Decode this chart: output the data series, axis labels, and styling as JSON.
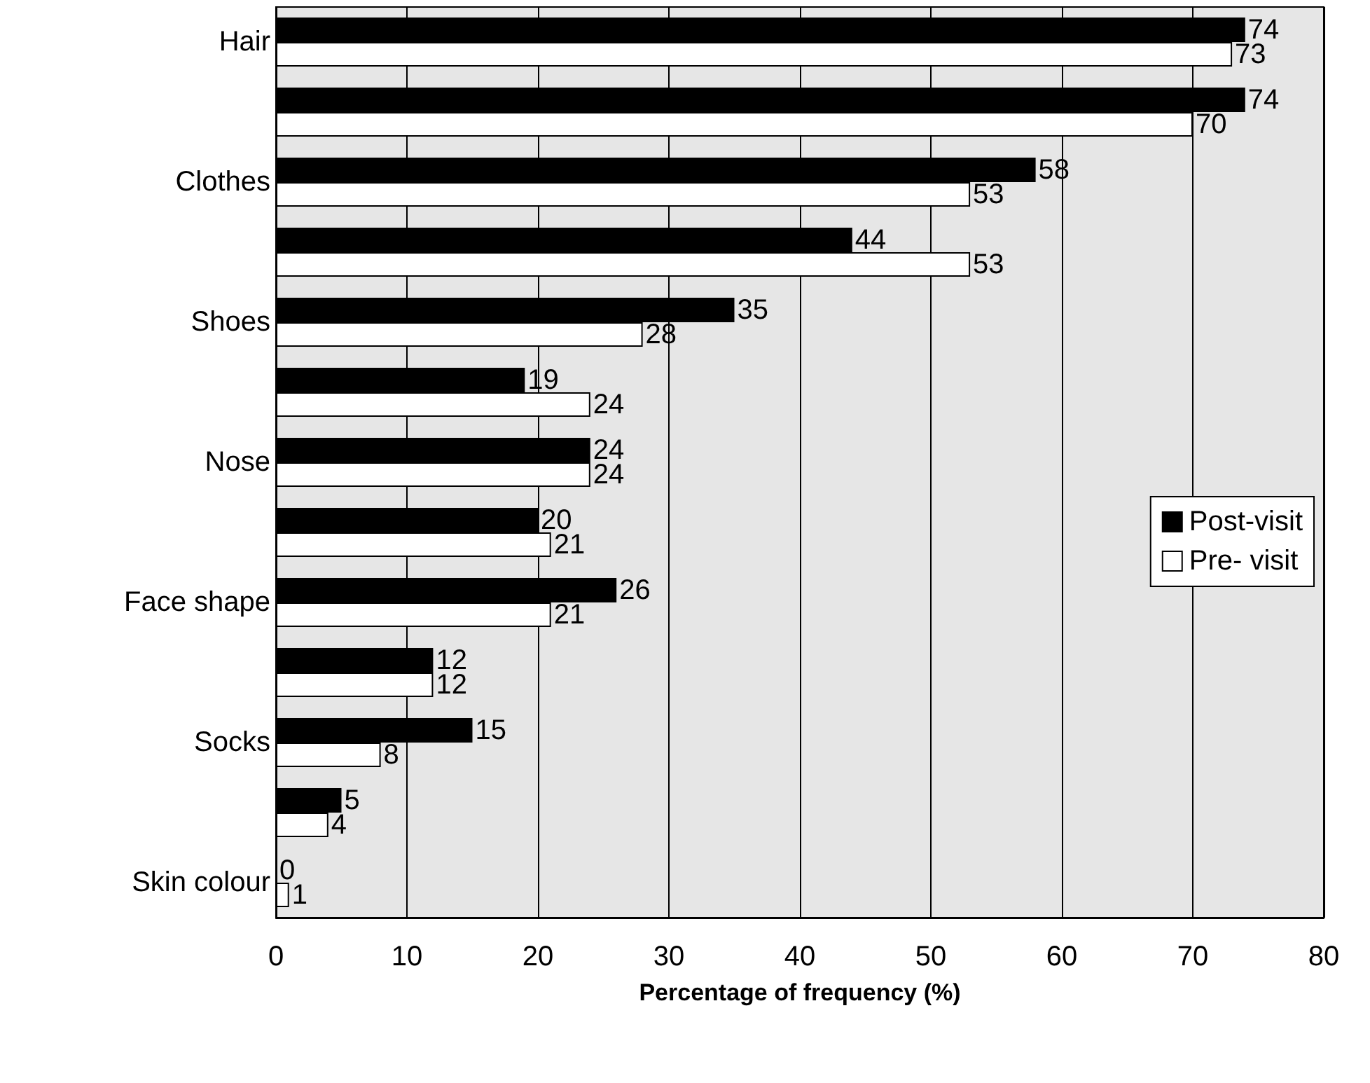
{
  "chart_data": {
    "type": "bar",
    "orientation": "horizontal",
    "xlabel": "Percentage of frequency (%)",
    "categories": [
      "Hair",
      null,
      "Clothes",
      null,
      "Shoes",
      null,
      "Nose",
      null,
      "Face shape",
      null,
      "Socks",
      null,
      "Skin colour"
    ],
    "series": [
      {
        "name": "Post-visit",
        "color": "#000000",
        "values": [
          74,
          74,
          58,
          44,
          35,
          19,
          24,
          20,
          26,
          12,
          15,
          5,
          0
        ]
      },
      {
        "name": "Pre- visit",
        "color": "#ffffff",
        "values": [
          73,
          70,
          53,
          53,
          28,
          24,
          24,
          21,
          21,
          12,
          8,
          4,
          1
        ]
      }
    ],
    "xlim": [
      0,
      80
    ],
    "xticks": [
      0,
      10,
      20,
      30,
      40,
      50,
      60,
      70,
      80
    ],
    "data_labels": true,
    "grid": "x",
    "legend": "right"
  }
}
